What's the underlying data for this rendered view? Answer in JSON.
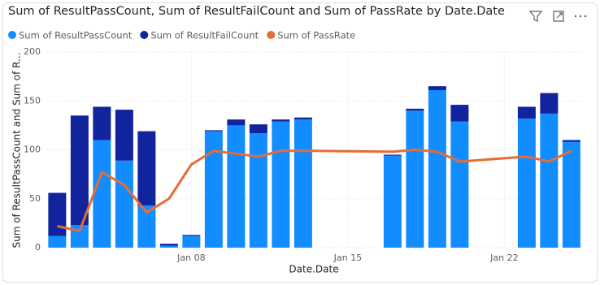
{
  "chart_data": {
    "type": "combo",
    "title": "Sum of ResultPassCount, Sum of ResultFailCount and Sum of PassRate by Date.Date",
    "x_label": "Date.Date",
    "y_label": "Sum of ResultPassCount and Sum of R...",
    "x": [
      2,
      3,
      4,
      5,
      6,
      7,
      8,
      9,
      10,
      11,
      12,
      13,
      17,
      18,
      19,
      20,
      23,
      24,
      25
    ],
    "xlim": [
      1.55,
      25.55
    ],
    "xticks": [
      {
        "value": 8,
        "label": "Jan 08"
      },
      {
        "value": 15,
        "label": "Jan 15"
      },
      {
        "value": 22,
        "label": "Jan 22"
      }
    ],
    "ylim": [
      0,
      200
    ],
    "yticks": [
      0,
      50,
      100,
      150,
      200
    ],
    "grid": true,
    "series": [
      {
        "name": "Sum of ResultPassCount",
        "color": "#118DFF",
        "kind": "bar",
        "values": [
          12,
          23,
          110,
          89,
          43,
          2,
          12,
          119,
          125,
          117,
          129,
          131,
          94,
          140,
          161,
          129,
          132,
          137,
          108
        ]
      },
      {
        "name": "Sum of ResultFailCount",
        "color": "#12239E",
        "kind": "bar",
        "values": [
          44,
          112,
          34,
          52,
          76,
          2,
          1,
          1,
          6,
          9,
          2,
          2,
          1,
          2,
          4,
          17,
          12,
          21,
          2
        ]
      },
      {
        "name": "Sum of PassRate",
        "color": "#E66C37",
        "kind": "line",
        "values": [
          22,
          17,
          77,
          64,
          36,
          50,
          85,
          99,
          96,
          93,
          99,
          99,
          98,
          100,
          98,
          88,
          93,
          88,
          99
        ]
      }
    ]
  }
}
